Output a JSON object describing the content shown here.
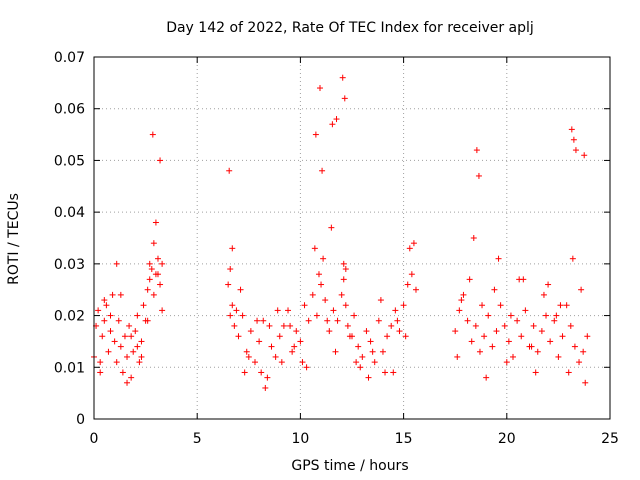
{
  "chart_data": {
    "type": "scatter",
    "title": "Day 142 of 2022, Rate Of TEC Index for receiver aplj",
    "xlabel": "GPS time / hours",
    "ylabel": "ROTI / TECUs",
    "xlim": [
      0,
      25
    ],
    "ylim": [
      0,
      0.07
    ],
    "xticks": [
      0,
      5,
      10,
      15,
      20,
      25
    ],
    "xtick_labels": [
      "0",
      "5",
      "10",
      "15",
      "20",
      "25"
    ],
    "yticks": [
      0,
      0.01,
      0.02,
      0.03,
      0.04,
      0.05,
      0.06,
      0.07
    ],
    "ytick_labels": [
      "0",
      "0.01",
      "0.02",
      "0.03",
      "0.04",
      "0.05",
      "0.06",
      "0.07"
    ],
    "grid": true,
    "marker": "+",
    "color": "#ff0000",
    "series": [
      {
        "name": "ROTI",
        "x": [
          0.0,
          0.1,
          0.2,
          0.3,
          0.4,
          0.5,
          0.6,
          0.7,
          0.8,
          0.9,
          1.0,
          1.1,
          1.2,
          1.3,
          1.4,
          1.5,
          1.6,
          1.7,
          1.8,
          1.9,
          2.0,
          2.1,
          2.2,
          2.3,
          2.4,
          2.5,
          2.6,
          2.7,
          2.8,
          2.9,
          3.0,
          3.1,
          3.2,
          3.3,
          6.5,
          6.6,
          6.7,
          6.8,
          6.9,
          7.0,
          7.2,
          7.4,
          7.6,
          7.8,
          8.0,
          8.2,
          8.4,
          8.6,
          8.8,
          9.0,
          9.2,
          9.4,
          9.6,
          9.8,
          10.0,
          10.2,
          10.4,
          10.6,
          10.8,
          11.0,
          11.1,
          11.2,
          11.4,
          11.6,
          11.8,
          12.0,
          12.1,
          12.2,
          12.3,
          12.4,
          12.6,
          12.8,
          13.0,
          13.2,
          13.4,
          13.6,
          13.8,
          14.0,
          14.2,
          14.4,
          14.6,
          14.8,
          15.0,
          15.2,
          15.4,
          15.6,
          17.5,
          17.7,
          17.9,
          18.1,
          18.3,
          18.5,
          18.7,
          18.9,
          19.1,
          19.3,
          19.5,
          19.7,
          19.9,
          20.1,
          20.3,
          20.5,
          20.7,
          20.9,
          21.1,
          21.3,
          21.5,
          21.7,
          21.9,
          22.1,
          22.3,
          22.5,
          22.7,
          22.9,
          23.1,
          23.3,
          23.5,
          23.7,
          23.9,
          0.3,
          0.8,
          1.3,
          1.8,
          2.3,
          2.7,
          2.9,
          3.1,
          3.3,
          6.6,
          7.1,
          7.5,
          8.1,
          8.5,
          9.1,
          9.7,
          10.3,
          10.9,
          11.3,
          11.7,
          12.1,
          12.5,
          12.9,
          13.5,
          14.1,
          14.7,
          15.3,
          17.6,
          18.2,
          18.8,
          19.4,
          20.0,
          20.6,
          21.2,
          21.8,
          22.4,
          23.0,
          23.6,
          0.5,
          1.1,
          1.6,
          2.1,
          2.6,
          3.0,
          6.7,
          7.3,
          7.9,
          8.3,
          8.9,
          9.5,
          10.1,
          10.7,
          11.5,
          12.2,
          12.7,
          13.3,
          13.9,
          14.5,
          15.1,
          15.5,
          17.8,
          18.4,
          19.0,
          19.6,
          20.2,
          20.8,
          21.4,
          22.0,
          22.6,
          23.2,
          23.8,
          2.85,
          3.2,
          6.55,
          10.75,
          10.95,
          11.05,
          11.55,
          11.75,
          12.05,
          12.15,
          18.55,
          18.65,
          23.15,
          23.25,
          23.35,
          23.75
        ],
        "y": [
          0.012,
          0.018,
          0.021,
          0.009,
          0.016,
          0.019,
          0.022,
          0.013,
          0.017,
          0.024,
          0.015,
          0.011,
          0.019,
          0.014,
          0.009,
          0.016,
          0.012,
          0.018,
          0.008,
          0.013,
          0.017,
          0.02,
          0.011,
          0.015,
          0.022,
          0.019,
          0.025,
          0.027,
          0.029,
          0.024,
          0.028,
          0.031,
          0.026,
          0.03,
          0.026,
          0.029,
          0.022,
          0.018,
          0.021,
          0.016,
          0.02,
          0.013,
          0.017,
          0.011,
          0.015,
          0.019,
          0.008,
          0.014,
          0.012,
          0.016,
          0.018,
          0.021,
          0.013,
          0.017,
          0.015,
          0.022,
          0.019,
          0.024,
          0.02,
          0.026,
          0.031,
          0.023,
          0.017,
          0.021,
          0.019,
          0.024,
          0.027,
          0.022,
          0.018,
          0.016,
          0.02,
          0.014,
          0.012,
          0.017,
          0.015,
          0.011,
          0.019,
          0.013,
          0.016,
          0.018,
          0.021,
          0.017,
          0.022,
          0.026,
          0.028,
          0.025,
          0.017,
          0.021,
          0.024,
          0.019,
          0.015,
          0.018,
          0.013,
          0.016,
          0.02,
          0.014,
          0.017,
          0.022,
          0.018,
          0.015,
          0.012,
          0.019,
          0.016,
          0.021,
          0.014,
          0.018,
          0.013,
          0.017,
          0.02,
          0.015,
          0.019,
          0.012,
          0.016,
          0.022,
          0.018,
          0.014,
          0.011,
          0.013,
          0.016,
          0.011,
          0.02,
          0.024,
          0.016,
          0.012,
          0.03,
          0.034,
          0.028,
          0.021,
          0.02,
          0.025,
          0.012,
          0.009,
          0.018,
          0.011,
          0.014,
          0.01,
          0.028,
          0.019,
          0.013,
          0.03,
          0.016,
          0.01,
          0.013,
          0.009,
          0.019,
          0.033,
          0.012,
          0.027,
          0.022,
          0.025,
          0.011,
          0.027,
          0.014,
          0.024,
          0.02,
          0.009,
          0.025,
          0.023,
          0.03,
          0.007,
          0.014,
          0.019,
          0.038,
          0.033,
          0.009,
          0.019,
          0.006,
          0.021,
          0.018,
          0.011,
          0.033,
          0.037,
          0.029,
          0.011,
          0.008,
          0.023,
          0.009,
          0.016,
          0.034,
          0.023,
          0.035,
          0.008,
          0.031,
          0.02,
          0.027,
          0.009,
          0.026,
          0.022,
          0.031,
          0.007,
          0.055,
          0.05,
          0.048,
          0.055,
          0.064,
          0.048,
          0.057,
          0.058,
          0.066,
          0.062,
          0.052,
          0.047,
          0.056,
          0.054,
          0.052,
          0.051
        ]
      }
    ]
  }
}
